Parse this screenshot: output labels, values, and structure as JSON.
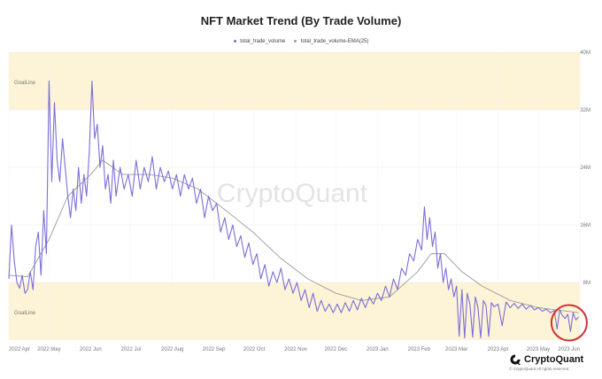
{
  "title": "NFT Market Trend (By Trade Volume)",
  "legend": [
    {
      "label": "total_trade_volume",
      "color": "#7b6fd6"
    },
    {
      "label": "total_trade_volume-EMA(25)",
      "color": "#9a9a9a"
    }
  ],
  "band_label_top": "GoalLine",
  "band_label_bottom": "GoalLine",
  "watermark": "CryptoQuant",
  "footer": {
    "brand": "CryptoQuant",
    "copyright": "© CryptoQuant All rights reserved."
  },
  "chart_data": {
    "type": "line",
    "title": "NFT Market Trend (By Trade Volume)",
    "xlabel": "",
    "ylabel": "",
    "xlim": [
      "2022-04-01",
      "2023-06-01"
    ],
    "ylim": [
      0,
      40000000
    ],
    "y_ticks": [
      {
        "value": 8000000,
        "label": "8M"
      },
      {
        "value": 16000000,
        "label": "16M"
      },
      {
        "value": 24000000,
        "label": "24M"
      },
      {
        "value": 32000000,
        "label": "32M"
      },
      {
        "value": 40000000,
        "label": "40M"
      }
    ],
    "x_ticks": [
      {
        "date": "2022-04-01",
        "label": "2022 Apr"
      },
      {
        "date": "2022-05-01",
        "label": "2022 May"
      },
      {
        "date": "2022-06-01",
        "label": "2022 Jun"
      },
      {
        "date": "2022-07-01",
        "label": "2022 Jul"
      },
      {
        "date": "2022-08-01",
        "label": "2022 Aug"
      },
      {
        "date": "2022-09-01",
        "label": "2022 Sep"
      },
      {
        "date": "2022-10-01",
        "label": "2022 Oct"
      },
      {
        "date": "2022-11-01",
        "label": "2022 Nov"
      },
      {
        "date": "2022-12-01",
        "label": "2022 Dec"
      },
      {
        "date": "2023-01-01",
        "label": "2023 Jan"
      },
      {
        "date": "2023-02-01",
        "label": "2023 Feb"
      },
      {
        "date": "2023-03-01",
        "label": "2023 Mar"
      },
      {
        "date": "2023-04-01",
        "label": "2023 Apr"
      },
      {
        "date": "2023-05-01",
        "label": "2023 May"
      },
      {
        "date": "2023-06-01",
        "label": "2023 Jun"
      }
    ],
    "bands": [
      {
        "from": 32000000,
        "to": 40000000,
        "color": "#fdf3d7"
      },
      {
        "from": 0,
        "to": 8000000,
        "color": "#fdf3d7"
      }
    ],
    "grid": true,
    "legend_position": "top-center",
    "annotation": {
      "type": "circle",
      "date": "2023-05-24",
      "value": 2400000,
      "color": "#d32f2f"
    },
    "series": [
      {
        "name": "total_trade_volume",
        "color": "#7b6fd6",
        "points": [
          [
            "2022-04-01",
            8500000
          ],
          [
            "2022-04-03",
            16000000
          ],
          [
            "2022-04-05",
            11000000
          ],
          [
            "2022-04-07",
            8000000
          ],
          [
            "2022-04-09",
            7200000
          ],
          [
            "2022-04-11",
            9000000
          ],
          [
            "2022-04-13",
            6500000
          ],
          [
            "2022-04-15",
            7000000
          ],
          [
            "2022-04-17",
            9500000
          ],
          [
            "2022-04-19",
            7000000
          ],
          [
            "2022-04-21",
            13000000
          ],
          [
            "2022-04-23",
            15000000
          ],
          [
            "2022-04-25",
            9000000
          ],
          [
            "2022-04-27",
            18000000
          ],
          [
            "2022-04-29",
            12000000
          ],
          [
            "2022-05-01",
            36000000
          ],
          [
            "2022-05-03",
            22000000
          ],
          [
            "2022-05-05",
            33000000
          ],
          [
            "2022-05-07",
            25000000
          ],
          [
            "2022-05-09",
            22000000
          ],
          [
            "2022-05-11",
            28000000
          ],
          [
            "2022-05-13",
            24000000
          ],
          [
            "2022-05-15",
            20000000
          ],
          [
            "2022-05-17",
            17000000
          ],
          [
            "2022-05-19",
            21000000
          ],
          [
            "2022-05-21",
            18000000
          ],
          [
            "2022-05-23",
            24000000
          ],
          [
            "2022-05-25",
            19000000
          ],
          [
            "2022-05-27",
            23000000
          ],
          [
            "2022-05-29",
            20000000
          ],
          [
            "2022-05-31",
            26000000
          ],
          [
            "2022-06-02",
            36000000
          ],
          [
            "2022-06-04",
            28000000
          ],
          [
            "2022-06-06",
            30000000
          ],
          [
            "2022-06-08",
            24000000
          ],
          [
            "2022-06-10",
            27000000
          ],
          [
            "2022-06-12",
            21000000
          ],
          [
            "2022-06-14",
            23000000
          ],
          [
            "2022-06-16",
            19000000
          ],
          [
            "2022-06-18",
            25000000
          ],
          [
            "2022-06-20",
            20000000
          ],
          [
            "2022-06-23",
            24000000
          ],
          [
            "2022-06-26",
            21000000
          ],
          [
            "2022-06-29",
            23000000
          ],
          [
            "2022-07-02",
            20000000
          ],
          [
            "2022-07-05",
            25000000
          ],
          [
            "2022-07-08",
            21000000
          ],
          [
            "2022-07-11",
            24000000
          ],
          [
            "2022-07-14",
            22000000
          ],
          [
            "2022-07-17",
            25500000
          ],
          [
            "2022-07-20",
            21000000
          ],
          [
            "2022-07-23",
            24000000
          ],
          [
            "2022-07-26",
            22000000
          ],
          [
            "2022-07-29",
            23500000
          ],
          [
            "2022-08-01",
            21000000
          ],
          [
            "2022-08-04",
            23000000
          ],
          [
            "2022-08-07",
            20000000
          ],
          [
            "2022-08-10",
            23000000
          ],
          [
            "2022-08-13",
            21000000
          ],
          [
            "2022-08-16",
            22500000
          ],
          [
            "2022-08-19",
            19000000
          ],
          [
            "2022-08-22",
            21000000
          ],
          [
            "2022-08-25",
            17000000
          ],
          [
            "2022-08-28",
            20000000
          ],
          [
            "2022-08-31",
            18000000
          ],
          [
            "2022-09-03",
            19000000
          ],
          [
            "2022-09-06",
            15000000
          ],
          [
            "2022-09-09",
            17000000
          ],
          [
            "2022-09-12",
            14000000
          ],
          [
            "2022-09-15",
            16000000
          ],
          [
            "2022-09-18",
            13000000
          ],
          [
            "2022-09-21",
            14500000
          ],
          [
            "2022-09-24",
            11500000
          ],
          [
            "2022-09-27",
            13500000
          ],
          [
            "2022-09-30",
            10500000
          ],
          [
            "2022-10-03",
            12000000
          ],
          [
            "2022-10-06",
            8500000
          ],
          [
            "2022-10-09",
            10500000
          ],
          [
            "2022-10-12",
            7500000
          ],
          [
            "2022-10-15",
            9500000
          ],
          [
            "2022-10-18",
            8000000
          ],
          [
            "2022-10-21",
            10000000
          ],
          [
            "2022-10-24",
            7000000
          ],
          [
            "2022-10-27",
            8500000
          ],
          [
            "2022-10-30",
            6500000
          ],
          [
            "2022-11-02",
            8000000
          ],
          [
            "2022-11-05",
            5500000
          ],
          [
            "2022-11-08",
            7000000
          ],
          [
            "2022-11-11",
            4500000
          ],
          [
            "2022-11-14",
            6500000
          ],
          [
            "2022-11-17",
            4000000
          ],
          [
            "2022-11-20",
            5500000
          ],
          [
            "2022-11-23",
            4000000
          ],
          [
            "2022-11-26",
            5000000
          ],
          [
            "2022-11-29",
            3800000
          ],
          [
            "2022-12-02",
            5000000
          ],
          [
            "2022-12-05",
            3800000
          ],
          [
            "2022-12-08",
            5200000
          ],
          [
            "2022-12-11",
            4000000
          ],
          [
            "2022-12-14",
            5500000
          ],
          [
            "2022-12-17",
            4200000
          ],
          [
            "2022-12-20",
            5800000
          ],
          [
            "2022-12-23",
            4500000
          ],
          [
            "2022-12-26",
            6000000
          ],
          [
            "2022-12-29",
            5000000
          ],
          [
            "2023-01-01",
            6500000
          ],
          [
            "2023-01-04",
            5500000
          ],
          [
            "2023-01-07",
            7500000
          ],
          [
            "2023-01-10",
            6000000
          ],
          [
            "2023-01-13",
            8500000
          ],
          [
            "2023-01-16",
            7000000
          ],
          [
            "2023-01-19",
            10000000
          ],
          [
            "2023-01-22",
            9000000
          ],
          [
            "2023-01-25",
            12000000
          ],
          [
            "2023-01-28",
            11000000
          ],
          [
            "2023-01-31",
            14000000
          ],
          [
            "2023-02-03",
            12500000
          ],
          [
            "2023-02-05",
            18500000
          ],
          [
            "2023-02-07",
            14000000
          ],
          [
            "2023-02-09",
            17000000
          ],
          [
            "2023-02-11",
            13000000
          ],
          [
            "2023-02-13",
            15000000
          ],
          [
            "2023-02-15",
            10000000
          ],
          [
            "2023-02-17",
            12000000
          ],
          [
            "2023-02-19",
            8000000
          ],
          [
            "2023-02-21",
            10000000
          ],
          [
            "2023-02-23",
            7000000
          ],
          [
            "2023-02-25",
            8500000
          ],
          [
            "2023-02-27",
            6000000
          ],
          [
            "2023-03-01",
            7500000
          ],
          [
            "2023-03-03",
            500000
          ],
          [
            "2023-03-05",
            7000000
          ],
          [
            "2023-03-07",
            300000
          ],
          [
            "2023-03-09",
            6500000
          ],
          [
            "2023-03-11",
            5000000
          ],
          [
            "2023-03-13",
            400000
          ],
          [
            "2023-03-15",
            6000000
          ],
          [
            "2023-03-17",
            4500000
          ],
          [
            "2023-03-19",
            300000
          ],
          [
            "2023-03-21",
            5500000
          ],
          [
            "2023-03-23",
            4800000
          ],
          [
            "2023-03-25",
            500000
          ],
          [
            "2023-03-27",
            5200000
          ],
          [
            "2023-03-29",
            4600000
          ],
          [
            "2023-04-01",
            5000000
          ],
          [
            "2023-04-04",
            2000000
          ],
          [
            "2023-04-07",
            5300000
          ],
          [
            "2023-04-10",
            4500000
          ],
          [
            "2023-04-13",
            5100000
          ],
          [
            "2023-04-16",
            4400000
          ],
          [
            "2023-04-19",
            5000000
          ],
          [
            "2023-04-22",
            4300000
          ],
          [
            "2023-04-25",
            4800000
          ],
          [
            "2023-04-28",
            4200000
          ],
          [
            "2023-05-01",
            4500000
          ],
          [
            "2023-05-04",
            4000000
          ],
          [
            "2023-05-07",
            4300000
          ],
          [
            "2023-05-10",
            3800000
          ],
          [
            "2023-05-13",
            4100000
          ],
          [
            "2023-05-15",
            1500000
          ],
          [
            "2023-05-17",
            4200000
          ],
          [
            "2023-05-19",
            3400000
          ],
          [
            "2023-05-21",
            3000000
          ],
          [
            "2023-05-23",
            3600000
          ],
          [
            "2023-05-25",
            1200000
          ],
          [
            "2023-05-27",
            3800000
          ],
          [
            "2023-05-29",
            2800000
          ],
          [
            "2023-05-31",
            3200000
          ]
        ]
      },
      {
        "name": "total_trade_volume-EMA(25)",
        "color": "#9a9a9a",
        "points": [
          [
            "2022-04-01",
            9000000
          ],
          [
            "2022-04-15",
            8800000
          ],
          [
            "2022-05-01",
            14000000
          ],
          [
            "2022-05-15",
            20000000
          ],
          [
            "2022-06-01",
            23000000
          ],
          [
            "2022-06-10",
            25000000
          ],
          [
            "2022-06-25",
            23000000
          ],
          [
            "2022-07-15",
            23000000
          ],
          [
            "2022-08-01",
            22500000
          ],
          [
            "2022-08-20",
            21000000
          ],
          [
            "2022-09-10",
            18000000
          ],
          [
            "2022-09-30",
            15000000
          ],
          [
            "2022-10-20",
            11500000
          ],
          [
            "2022-11-10",
            8500000
          ],
          [
            "2022-12-01",
            6500000
          ],
          [
            "2022-12-20",
            5500000
          ],
          [
            "2023-01-10",
            6000000
          ],
          [
            "2023-01-31",
            9500000
          ],
          [
            "2023-02-10",
            12000000
          ],
          [
            "2023-02-20",
            12000000
          ],
          [
            "2023-03-05",
            9500000
          ],
          [
            "2023-03-20",
            7500000
          ],
          [
            "2023-04-10",
            5500000
          ],
          [
            "2023-05-01",
            4500000
          ],
          [
            "2023-05-31",
            3800000
          ]
        ]
      }
    ]
  }
}
